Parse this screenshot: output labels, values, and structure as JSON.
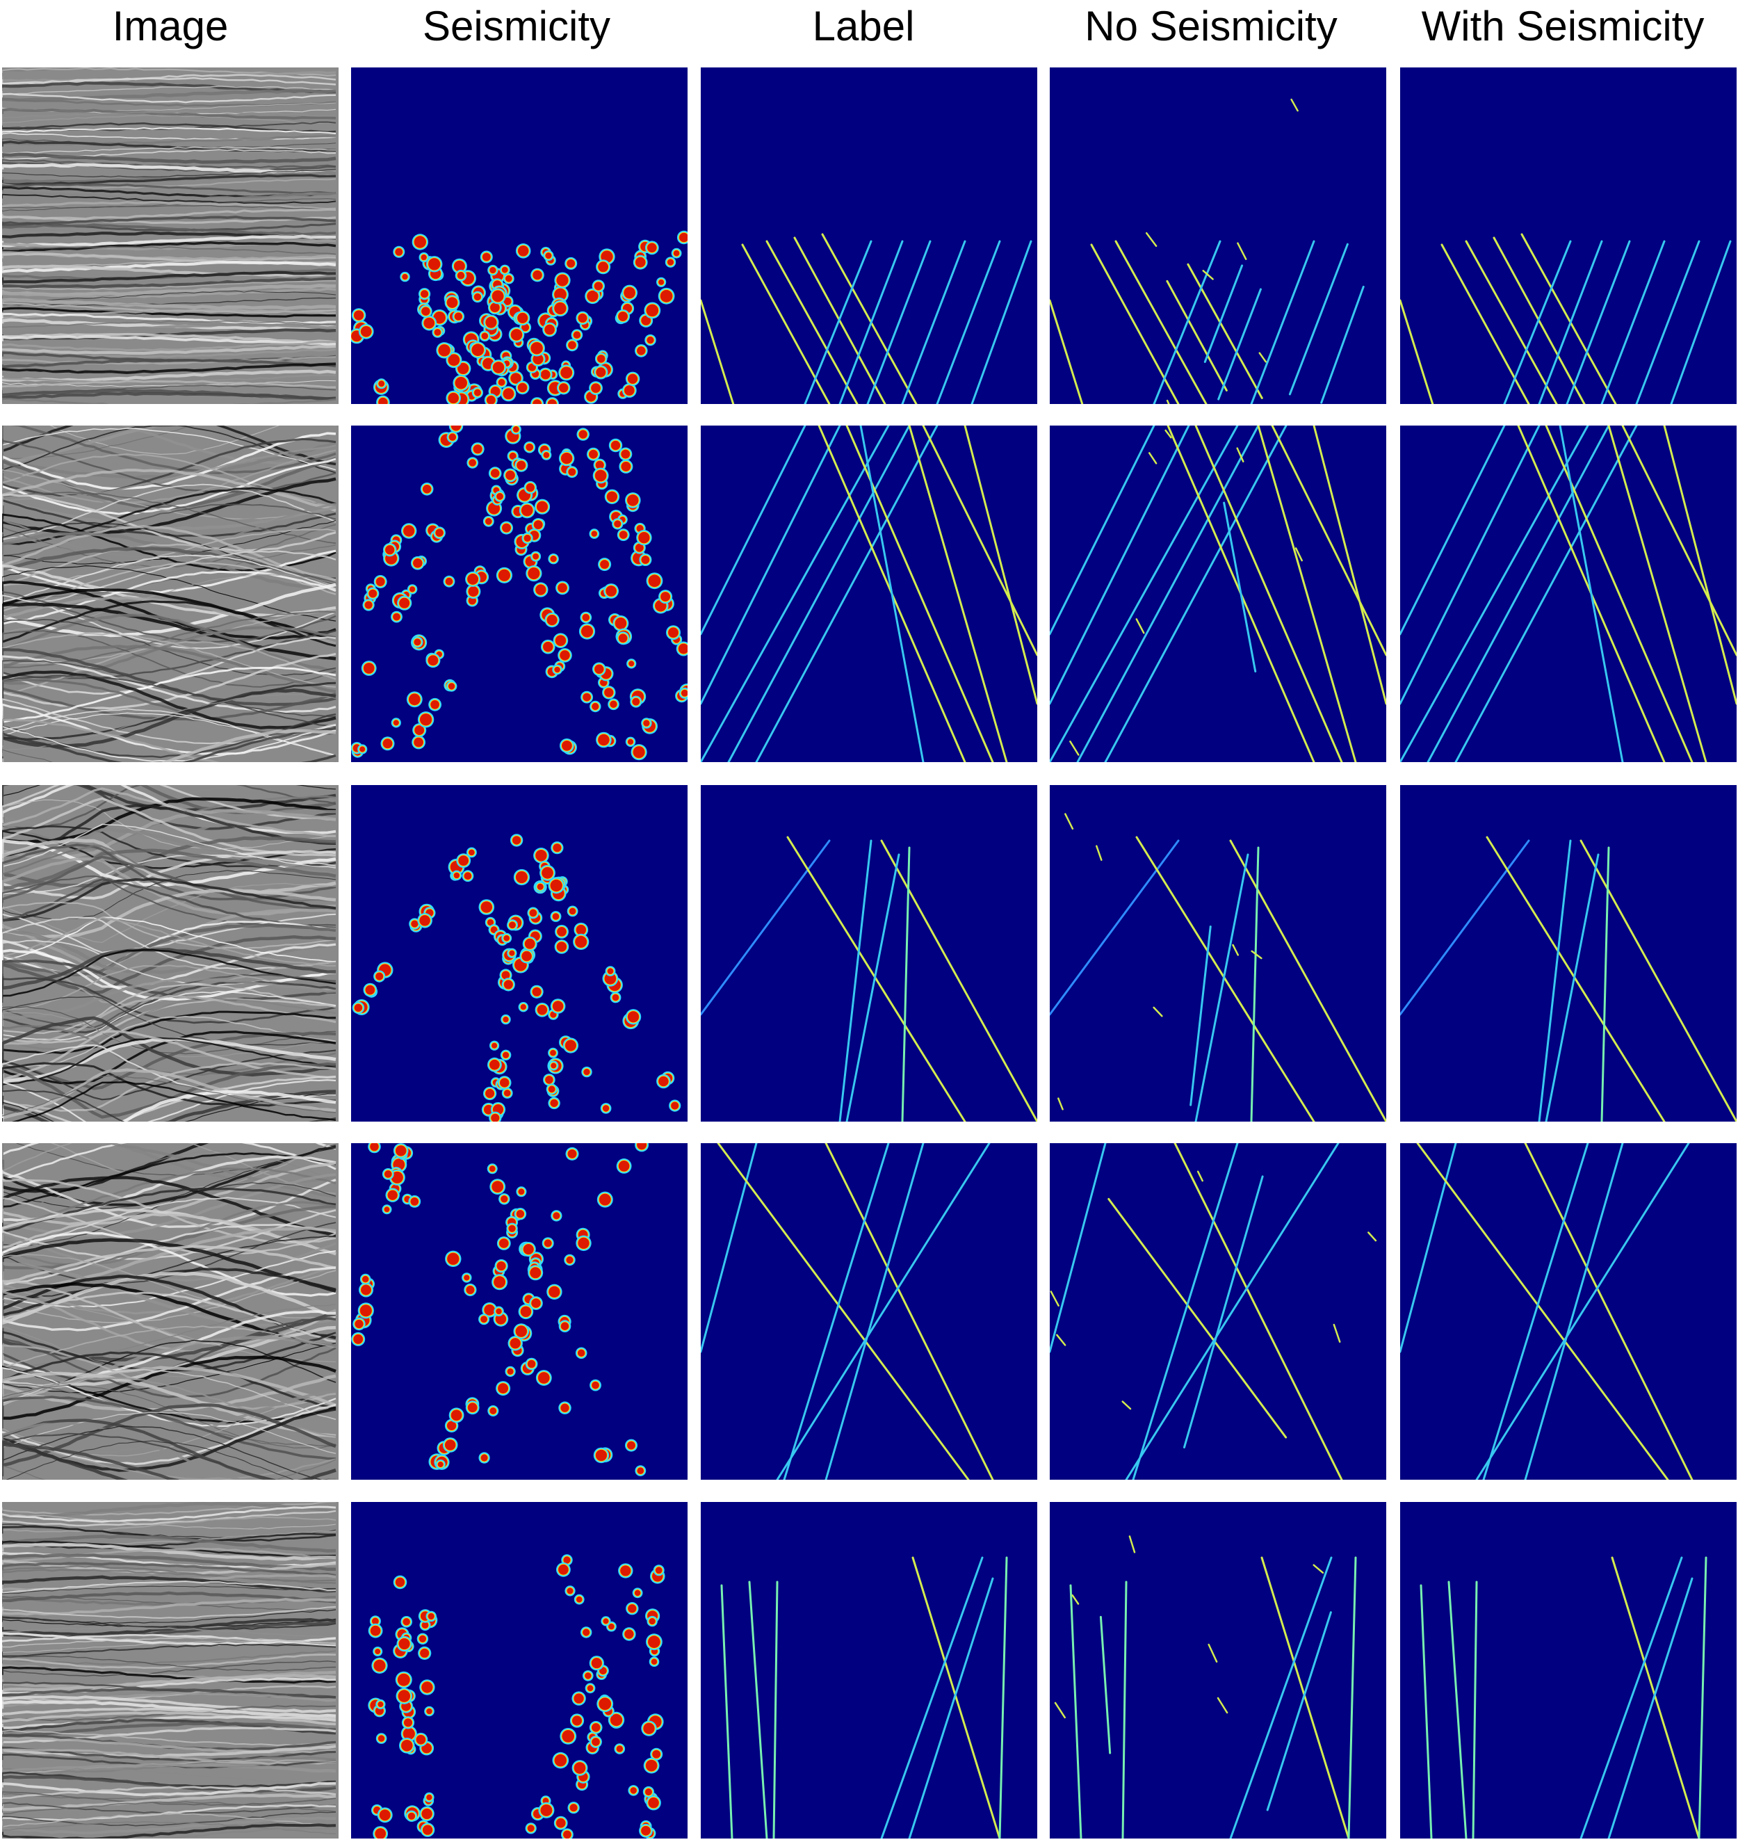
{
  "figure": {
    "columns": [
      {
        "key": "image",
        "title": "Image"
      },
      {
        "key": "seismicity",
        "title": "Seismicity"
      },
      {
        "key": "label",
        "title": "Label"
      },
      {
        "key": "no_seismicity",
        "title": "No Seismicity"
      },
      {
        "key": "with_seismicity",
        "title": "With Seismicity"
      }
    ],
    "rows": 5,
    "colors": {
      "background_blue": "#000080",
      "line_cyan": "#38c8f0",
      "line_blue": "#2f8cff",
      "line_yellow": "#d4ec4e",
      "line_green": "#78f0b0",
      "seis_red": "#dd1a00",
      "seis_yellow": "#f8e81e",
      "seis_cyan": "#2fd8ff"
    }
  }
}
